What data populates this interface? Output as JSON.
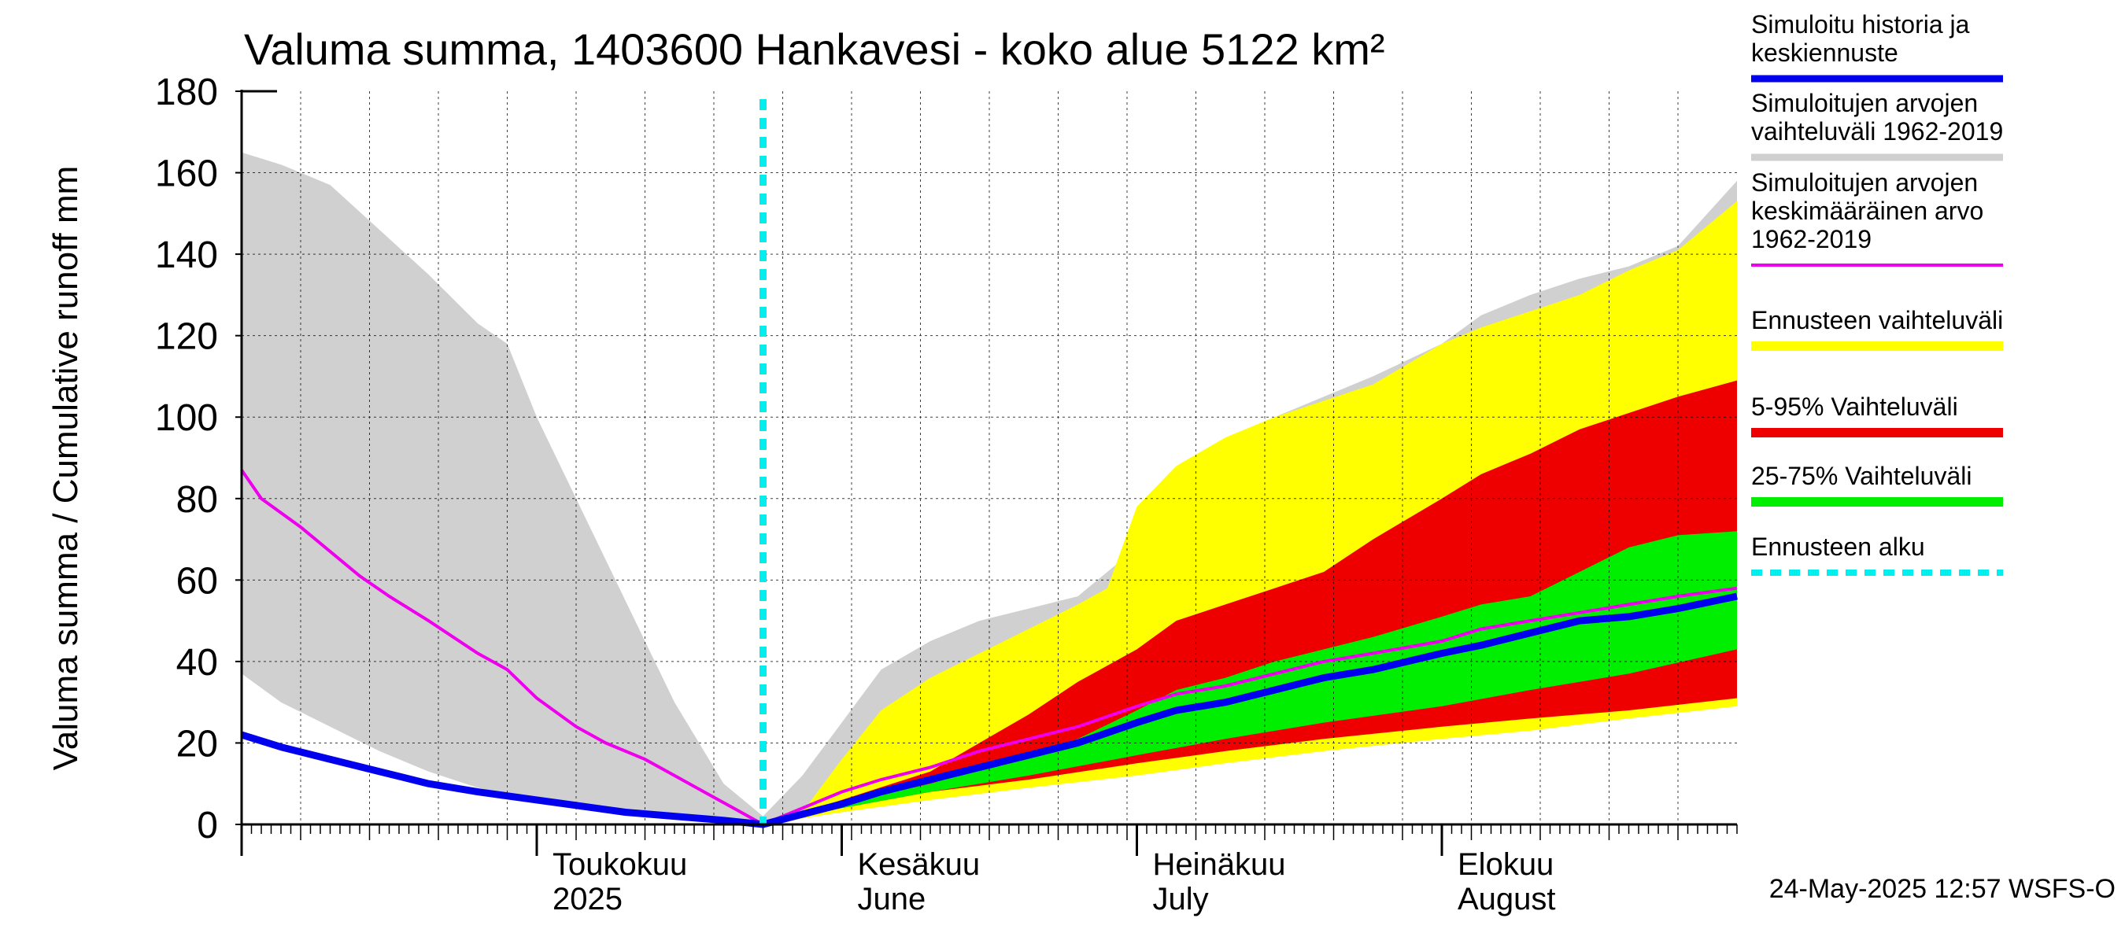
{
  "chart_data": {
    "type": "area",
    "title": "Valuma summa, 1403600 Hankavesi - koko alue 5122 km²",
    "ylabel": "Valuma summa / Cumulative runoff    mm",
    "xlabel": "",
    "ylim": [
      0,
      180
    ],
    "yticks": [
      0,
      20,
      40,
      60,
      80,
      100,
      120,
      140,
      160,
      180
    ],
    "x_range": [
      "2025-04-01",
      "2025-08-31"
    ],
    "forecast_start": "2025-05-24",
    "timestamp": "24-May-2025 12:57 WSFS-O",
    "month_labels": [
      {
        "date": "2025-05-01",
        "line1": "Toukokuu",
        "line2": "2025"
      },
      {
        "date": "2025-06-01",
        "line1": "Kesäkuu",
        "line2": "June"
      },
      {
        "date": "2025-07-01",
        "line1": "Heinäkuu",
        "line2": "July"
      },
      {
        "date": "2025-08-01",
        "line1": "Elokuu",
        "line2": "August"
      }
    ],
    "legend": [
      {
        "label": "Simuloitu historia ja\nkeskiennuste",
        "color": "#0000ee",
        "key": "median"
      },
      {
        "label": "Simuloitujen arvojen\nvaihteluväli 1962-2019",
        "color": "#d0d0d0",
        "key": "hist_range"
      },
      {
        "label": "Simuloitujen arvojen\nkeskimääräinen arvo\n   1962-2019",
        "color": "#ee00ee",
        "key": "hist_mean"
      },
      {
        "label": "Ennusteen vaihteluväli",
        "color": "#ffff00",
        "key": "fc_range"
      },
      {
        "label": "5-95% Vaihteluväli",
        "color": "#ee0000",
        "key": "p5_95"
      },
      {
        "label": "25-75% Vaihteluväli",
        "color": "#00ee00",
        "key": "p25_75"
      },
      {
        "label": "Ennusteen alku",
        "color": "#00eeee",
        "key": "fc_start"
      }
    ],
    "series": {
      "hist_range_upper": [
        [
          "2025-04-01",
          165
        ],
        [
          "2025-04-05",
          162
        ],
        [
          "2025-04-10",
          157
        ],
        [
          "2025-04-15",
          146
        ],
        [
          "2025-04-20",
          135
        ],
        [
          "2025-04-25",
          123
        ],
        [
          "2025-04-28",
          118
        ],
        [
          "2025-05-01",
          100
        ],
        [
          "2025-05-05",
          80
        ],
        [
          "2025-05-10",
          55
        ],
        [
          "2025-05-15",
          30
        ],
        [
          "2025-05-20",
          10
        ],
        [
          "2025-05-24",
          2
        ],
        [
          "2025-05-28",
          12
        ],
        [
          "2025-06-01",
          25
        ],
        [
          "2025-06-05",
          38
        ],
        [
          "2025-06-10",
          45
        ],
        [
          "2025-06-15",
          50
        ],
        [
          "2025-06-20",
          53
        ],
        [
          "2025-06-25",
          56
        ],
        [
          "2025-07-01",
          68
        ],
        [
          "2025-07-05",
          80
        ],
        [
          "2025-07-10",
          92
        ],
        [
          "2025-07-15",
          100
        ],
        [
          "2025-07-20",
          105
        ],
        [
          "2025-07-25",
          110
        ],
        [
          "2025-08-01",
          118
        ],
        [
          "2025-08-05",
          125
        ],
        [
          "2025-08-10",
          130
        ],
        [
          "2025-08-15",
          134
        ],
        [
          "2025-08-20",
          137
        ],
        [
          "2025-08-25",
          142
        ],
        [
          "2025-08-31",
          158
        ]
      ],
      "hist_range_lower": [
        [
          "2025-04-01",
          37
        ],
        [
          "2025-04-05",
          30
        ],
        [
          "2025-04-10",
          24
        ],
        [
          "2025-04-15",
          18
        ],
        [
          "2025-04-20",
          13
        ],
        [
          "2025-04-25",
          9
        ],
        [
          "2025-05-01",
          6
        ],
        [
          "2025-05-10",
          3
        ],
        [
          "2025-05-20",
          1
        ],
        [
          "2025-05-24",
          0
        ],
        [
          "2025-06-01",
          3
        ],
        [
          "2025-06-10",
          6
        ],
        [
          "2025-06-20",
          9
        ],
        [
          "2025-07-01",
          13
        ],
        [
          "2025-07-10",
          16
        ],
        [
          "2025-07-20",
          19
        ],
        [
          "2025-08-01",
          23
        ],
        [
          "2025-08-10",
          25
        ],
        [
          "2025-08-20",
          28
        ],
        [
          "2025-08-31",
          31
        ]
      ],
      "fc_range_upper": [
        [
          "2025-05-24",
          0
        ],
        [
          "2025-05-28",
          3
        ],
        [
          "2025-06-01",
          16
        ],
        [
          "2025-06-05",
          28
        ],
        [
          "2025-06-10",
          36
        ],
        [
          "2025-06-15",
          42
        ],
        [
          "2025-06-20",
          48
        ],
        [
          "2025-06-25",
          54
        ],
        [
          "2025-06-28",
          58
        ],
        [
          "2025-07-01",
          78
        ],
        [
          "2025-07-05",
          88
        ],
        [
          "2025-07-10",
          95
        ],
        [
          "2025-07-15",
          100
        ],
        [
          "2025-07-20",
          104
        ],
        [
          "2025-07-25",
          108
        ],
        [
          "2025-08-01",
          118
        ],
        [
          "2025-08-05",
          122
        ],
        [
          "2025-08-10",
          126
        ],
        [
          "2025-08-15",
          130
        ],
        [
          "2025-08-20",
          136
        ],
        [
          "2025-08-25",
          141
        ],
        [
          "2025-08-31",
          153
        ]
      ],
      "fc_range_lower": [
        [
          "2025-05-24",
          0
        ],
        [
          "2025-06-01",
          3
        ],
        [
          "2025-06-10",
          6
        ],
        [
          "2025-06-20",
          9
        ],
        [
          "2025-07-01",
          12
        ],
        [
          "2025-07-10",
          15
        ],
        [
          "2025-07-20",
          18
        ],
        [
          "2025-08-01",
          21
        ],
        [
          "2025-08-10",
          23
        ],
        [
          "2025-08-20",
          26
        ],
        [
          "2025-08-31",
          29
        ]
      ],
      "p95": [
        [
          "2025-05-24",
          0
        ],
        [
          "2025-06-01",
          6
        ],
        [
          "2025-06-10",
          13
        ],
        [
          "2025-06-15",
          20
        ],
        [
          "2025-06-20",
          27
        ],
        [
          "2025-06-25",
          35
        ],
        [
          "2025-07-01",
          43
        ],
        [
          "2025-07-05",
          50
        ],
        [
          "2025-07-10",
          54
        ],
        [
          "2025-07-15",
          58
        ],
        [
          "2025-07-20",
          62
        ],
        [
          "2025-07-25",
          70
        ],
        [
          "2025-08-01",
          80
        ],
        [
          "2025-08-05",
          86
        ],
        [
          "2025-08-10",
          91
        ],
        [
          "2025-08-15",
          97
        ],
        [
          "2025-08-20",
          101
        ],
        [
          "2025-08-25",
          105
        ],
        [
          "2025-08-31",
          109
        ]
      ],
      "p5": [
        [
          "2025-05-24",
          0
        ],
        [
          "2025-06-01",
          4
        ],
        [
          "2025-06-10",
          8
        ],
        [
          "2025-06-20",
          11
        ],
        [
          "2025-07-01",
          15
        ],
        [
          "2025-07-10",
          18
        ],
        [
          "2025-07-20",
          21
        ],
        [
          "2025-08-01",
          24
        ],
        [
          "2025-08-10",
          26
        ],
        [
          "2025-08-20",
          28
        ],
        [
          "2025-08-31",
          31
        ]
      ],
      "p75": [
        [
          "2025-05-24",
          0
        ],
        [
          "2025-06-01",
          5
        ],
        [
          "2025-06-10",
          10
        ],
        [
          "2025-06-20",
          17
        ],
        [
          "2025-06-25",
          21
        ],
        [
          "2025-07-01",
          28
        ],
        [
          "2025-07-05",
          33
        ],
        [
          "2025-07-10",
          36
        ],
        [
          "2025-07-15",
          40
        ],
        [
          "2025-07-20",
          43
        ],
        [
          "2025-07-25",
          46
        ],
        [
          "2025-08-01",
          51
        ],
        [
          "2025-08-05",
          54
        ],
        [
          "2025-08-10",
          56
        ],
        [
          "2025-08-15",
          62
        ],
        [
          "2025-08-20",
          68
        ],
        [
          "2025-08-25",
          71
        ],
        [
          "2025-08-31",
          72
        ]
      ],
      "p25": [
        [
          "2025-05-24",
          0
        ],
        [
          "2025-06-01",
          4
        ],
        [
          "2025-06-10",
          8
        ],
        [
          "2025-06-20",
          12
        ],
        [
          "2025-07-01",
          17
        ],
        [
          "2025-07-10",
          21
        ],
        [
          "2025-07-20",
          25
        ],
        [
          "2025-08-01",
          29
        ],
        [
          "2025-08-10",
          33
        ],
        [
          "2025-08-20",
          37
        ],
        [
          "2025-08-31",
          43
        ]
      ],
      "median": [
        [
          "2025-04-01",
          22
        ],
        [
          "2025-04-05",
          19
        ],
        [
          "2025-04-10",
          16
        ],
        [
          "2025-04-15",
          13
        ],
        [
          "2025-04-20",
          10
        ],
        [
          "2025-04-25",
          8
        ],
        [
          "2025-05-01",
          6
        ],
        [
          "2025-05-10",
          3
        ],
        [
          "2025-05-20",
          1
        ],
        [
          "2025-05-24",
          0
        ],
        [
          "2025-06-01",
          5
        ],
        [
          "2025-06-05",
          8
        ],
        [
          "2025-06-10",
          11
        ],
        [
          "2025-06-15",
          14
        ],
        [
          "2025-06-20",
          17
        ],
        [
          "2025-06-25",
          20
        ],
        [
          "2025-07-01",
          25
        ],
        [
          "2025-07-05",
          28
        ],
        [
          "2025-07-10",
          30
        ],
        [
          "2025-07-15",
          33
        ],
        [
          "2025-07-20",
          36
        ],
        [
          "2025-07-25",
          38
        ],
        [
          "2025-08-01",
          42
        ],
        [
          "2025-08-05",
          44
        ],
        [
          "2025-08-10",
          47
        ],
        [
          "2025-08-15",
          50
        ],
        [
          "2025-08-20",
          51
        ],
        [
          "2025-08-25",
          53
        ],
        [
          "2025-08-31",
          56
        ]
      ],
      "hist_mean": [
        [
          "2025-04-01",
          87
        ],
        [
          "2025-04-03",
          80
        ],
        [
          "2025-04-07",
          73
        ],
        [
          "2025-04-10",
          67
        ],
        [
          "2025-04-13",
          61
        ],
        [
          "2025-04-16",
          56
        ],
        [
          "2025-04-20",
          50
        ],
        [
          "2025-04-25",
          42
        ],
        [
          "2025-04-28",
          38
        ],
        [
          "2025-05-01",
          31
        ],
        [
          "2025-05-05",
          24
        ],
        [
          "2025-05-08",
          20
        ],
        [
          "2025-05-12",
          16
        ],
        [
          "2025-05-15",
          12
        ],
        [
          "2025-05-18",
          8
        ],
        [
          "2025-05-21",
          4
        ],
        [
          "2025-05-24",
          0
        ],
        [
          "2025-05-28",
          4
        ],
        [
          "2025-06-01",
          8
        ],
        [
          "2025-06-05",
          11
        ],
        [
          "2025-06-10",
          14
        ],
        [
          "2025-06-15",
          18
        ],
        [
          "2025-06-20",
          21
        ],
        [
          "2025-06-25",
          24
        ],
        [
          "2025-07-01",
          29
        ],
        [
          "2025-07-05",
          32
        ],
        [
          "2025-07-10",
          34
        ],
        [
          "2025-07-15",
          37
        ],
        [
          "2025-07-20",
          40
        ],
        [
          "2025-07-25",
          42
        ],
        [
          "2025-08-01",
          45
        ],
        [
          "2025-08-05",
          48
        ],
        [
          "2025-08-10",
          50
        ],
        [
          "2025-08-15",
          52
        ],
        [
          "2025-08-20",
          54
        ],
        [
          "2025-08-25",
          56
        ],
        [
          "2025-08-31",
          58
        ]
      ]
    }
  }
}
